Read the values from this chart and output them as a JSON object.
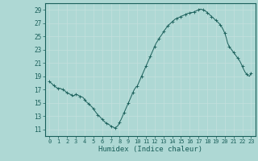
{
  "xlabel": "Humidex (Indice chaleur)",
  "bg_color": "#aed8d4",
  "grid_color": "#c4e0dd",
  "line_color": "#1a5f5a",
  "xlim": [
    -0.5,
    23.5
  ],
  "ylim": [
    10,
    30
  ],
  "yticks": [
    11,
    13,
    15,
    17,
    19,
    21,
    23,
    25,
    27,
    29
  ],
  "xtick_labels": [
    "0",
    "1",
    "2",
    "3",
    "4",
    "5",
    "6",
    "7",
    "8",
    "9",
    "10",
    "11",
    "12",
    "13",
    "14",
    "15",
    "16",
    "17",
    "18",
    "19",
    "20",
    "21",
    "22",
    "23"
  ],
  "x": [
    0,
    0.17,
    0.33,
    0.5,
    0.67,
    0.83,
    1.0,
    1.17,
    1.33,
    1.5,
    1.67,
    1.83,
    2.0,
    2.17,
    2.33,
    2.5,
    2.67,
    2.83,
    3.0,
    3.17,
    3.33,
    3.5,
    3.67,
    3.83,
    4.0,
    4.17,
    4.33,
    4.5,
    4.67,
    4.83,
    5.0,
    5.17,
    5.33,
    5.5,
    5.67,
    5.83,
    6.0,
    6.17,
    6.33,
    6.5,
    6.67,
    6.83,
    7.0,
    7.17,
    7.33,
    7.5,
    7.67,
    7.83,
    8.0,
    8.17,
    8.33,
    8.5,
    8.67,
    8.83,
    9.0,
    9.17,
    9.33,
    9.5,
    9.67,
    9.83,
    10.0,
    10.17,
    10.33,
    10.5,
    10.67,
    10.83,
    11.0,
    11.17,
    11.33,
    11.5,
    11.67,
    11.83,
    12.0,
    12.17,
    12.33,
    12.5,
    12.67,
    12.83,
    13.0,
    13.17,
    13.33,
    13.5,
    13.67,
    13.83,
    14.0,
    14.17,
    14.33,
    14.5,
    14.67,
    14.83,
    15.0,
    15.17,
    15.33,
    15.5,
    15.67,
    15.83,
    16.0,
    16.17,
    16.33,
    16.5,
    16.67,
    16.83,
    17.0,
    17.17,
    17.33,
    17.5,
    17.67,
    17.83,
    18.0,
    18.17,
    18.33,
    18.5,
    18.67,
    18.83,
    19.0,
    19.17,
    19.33,
    19.5,
    19.67,
    19.83,
    20.0,
    20.17,
    20.33,
    20.5,
    20.67,
    20.83,
    21.0,
    21.17,
    21.33,
    21.5,
    21.67,
    21.83,
    22.0,
    22.17,
    22.33,
    22.5,
    22.67,
    22.83,
    23.0
  ],
  "y": [
    18.2,
    18.0,
    17.8,
    17.6,
    17.4,
    17.3,
    17.1,
    17.2,
    17.1,
    17.0,
    16.9,
    16.7,
    16.5,
    16.4,
    16.3,
    16.2,
    16.0,
    16.1,
    16.3,
    16.2,
    16.1,
    16.0,
    15.9,
    15.8,
    15.5,
    15.2,
    15.0,
    14.8,
    14.6,
    14.4,
    14.1,
    13.8,
    13.5,
    13.2,
    13.0,
    12.8,
    12.5,
    12.3,
    12.1,
    11.9,
    11.8,
    11.7,
    11.5,
    11.4,
    11.3,
    11.2,
    11.4,
    11.6,
    12.1,
    12.5,
    13.0,
    13.5,
    14.0,
    14.5,
    15.0,
    15.5,
    16.0,
    16.5,
    17.0,
    17.3,
    17.5,
    18.0,
    18.5,
    19.0,
    19.5,
    20.0,
    20.5,
    21.0,
    21.5,
    22.0,
    22.5,
    23.0,
    23.5,
    24.0,
    24.3,
    24.7,
    25.0,
    25.3,
    25.7,
    26.0,
    26.3,
    26.6,
    26.8,
    27.0,
    27.2,
    27.4,
    27.6,
    27.7,
    27.8,
    27.9,
    28.0,
    28.1,
    28.2,
    28.3,
    28.4,
    28.5,
    28.5,
    28.6,
    28.6,
    28.7,
    28.8,
    28.9,
    29.0,
    29.1,
    29.1,
    29.0,
    28.9,
    28.8,
    28.6,
    28.4,
    28.2,
    28.0,
    27.8,
    27.6,
    27.4,
    27.2,
    27.0,
    26.7,
    26.4,
    26.0,
    25.5,
    24.8,
    24.0,
    23.5,
    23.2,
    22.9,
    22.6,
    22.3,
    22.0,
    21.7,
    21.4,
    21.0,
    20.5,
    20.0,
    19.6,
    19.3,
    19.1,
    19.0,
    19.5
  ]
}
